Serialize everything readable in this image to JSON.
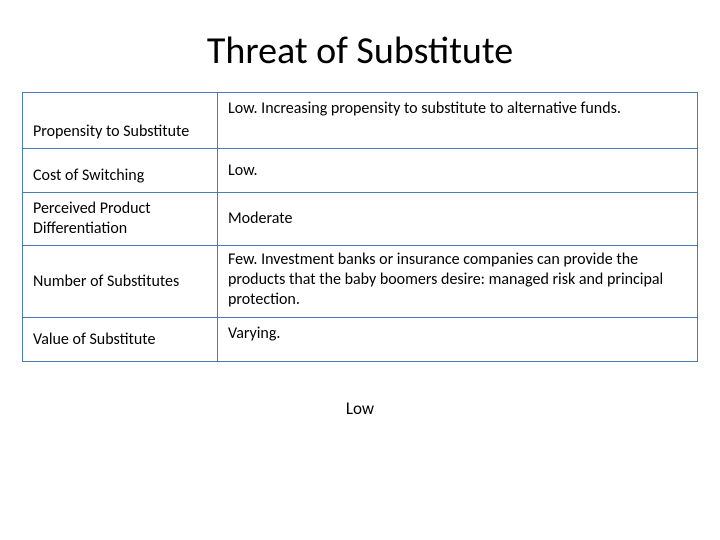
{
  "title": "Threat of Substitute",
  "table": {
    "border_color": "#4a7ab8",
    "rows": [
      {
        "label": "Propensity to Substitute",
        "value": "Low. Increasing propensity to substitute to alternative funds."
      },
      {
        "label": "Cost of Switching",
        "value": "Low."
      },
      {
        "label": "Perceived Product Differentiation",
        "value": "Moderate"
      },
      {
        "label": "Number of Substitutes",
        "value": "Few. Investment banks or insurance companies can provide the products that the baby boomers desire: managed risk and principal protection."
      },
      {
        "label": "Value of Substitute",
        "value": "Varying."
      }
    ]
  },
  "footer": "Low",
  "fonts": {
    "title_size_pt": 28,
    "body_size_pt": 12
  },
  "colors": {
    "text": "#000000",
    "background": "#ffffff",
    "border": "#4a7ab8"
  }
}
